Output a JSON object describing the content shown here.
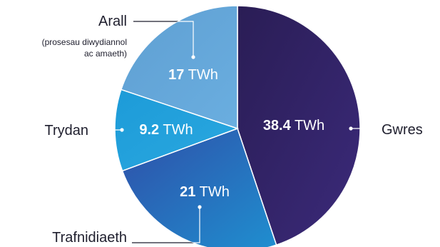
{
  "chart_data": {
    "type": "pie",
    "unit": "TWh",
    "slices": [
      {
        "label": "Gwres",
        "value": 38.4,
        "display": "38.4",
        "colors": [
          "#2a1d55",
          "#3b2a7a"
        ]
      },
      {
        "label": "Trafnidiaeth",
        "value": 21,
        "display": "21",
        "colors": [
          "#2f4fa8",
          "#1f8fd0"
        ]
      },
      {
        "label": "Trydan",
        "value": 9.2,
        "display": "9.2",
        "colors": [
          "#1d9bd8",
          "#2aa8e0"
        ]
      },
      {
        "label": "Arall",
        "sublabel": [
          "(prosesau diwydiannol",
          "ac amaeth)"
        ],
        "value": 17,
        "display": "17",
        "colors": [
          "#5f9fd2",
          "#6aaee0"
        ]
      }
    ]
  }
}
